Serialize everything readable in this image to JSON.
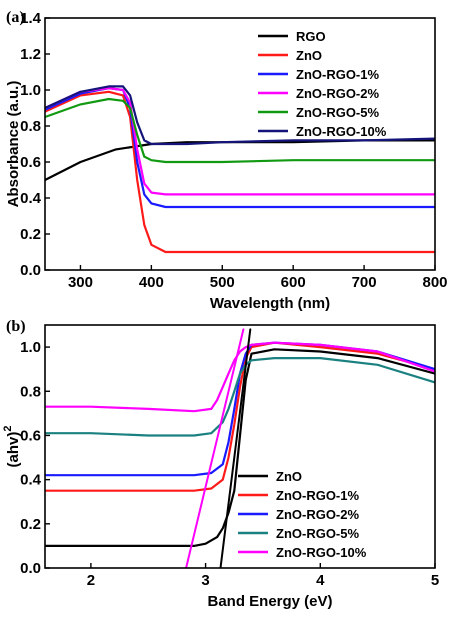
{
  "chart_data": [
    {
      "type": "line",
      "panel_label": "(a)",
      "xlabel": "Wavelength (nm)",
      "ylabel": "Absorbance (a.u.)",
      "xlim": [
        250,
        800
      ],
      "ylim": [
        0.0,
        1.4
      ],
      "xticks": [
        300,
        400,
        500,
        600,
        700,
        800
      ],
      "yticks": [
        0.0,
        0.2,
        0.4,
        0.6,
        0.8,
        1.0,
        1.2,
        1.4
      ],
      "ytick_labels": [
        "0.0",
        "0.2",
        "0.4",
        "0.6",
        "0.8",
        "1.0",
        "1.2",
        "1.4"
      ],
      "grid": false,
      "legend_position": "top-right",
      "series": [
        {
          "name": "RGO",
          "color": "#000000",
          "x": [
            250,
            300,
            350,
            400,
            450,
            500,
            600,
            700,
            800
          ],
          "y": [
            0.5,
            0.6,
            0.67,
            0.7,
            0.71,
            0.71,
            0.71,
            0.72,
            0.72
          ]
        },
        {
          "name": "ZnO",
          "color": "#ff1a1a",
          "x": [
            250,
            300,
            340,
            360,
            370,
            380,
            390,
            400,
            420,
            450,
            500,
            600,
            700,
            800
          ],
          "y": [
            0.88,
            0.97,
            0.99,
            0.97,
            0.85,
            0.5,
            0.25,
            0.14,
            0.1,
            0.1,
            0.1,
            0.1,
            0.1,
            0.1
          ]
        },
        {
          "name": "ZnO-RGO-1%",
          "color": "#1a1aff",
          "x": [
            250,
            300,
            340,
            360,
            370,
            380,
            390,
            400,
            420,
            450,
            500,
            600,
            700,
            800
          ],
          "y": [
            0.89,
            0.98,
            1.01,
            1.0,
            0.9,
            0.6,
            0.42,
            0.37,
            0.35,
            0.35,
            0.35,
            0.35,
            0.35,
            0.35
          ]
        },
        {
          "name": "ZnO-RGO-2%",
          "color": "#ff00ff",
          "x": [
            250,
            300,
            340,
            360,
            370,
            380,
            390,
            400,
            420,
            450,
            500,
            600,
            700,
            800
          ],
          "y": [
            0.9,
            0.99,
            1.01,
            1.0,
            0.93,
            0.67,
            0.48,
            0.43,
            0.42,
            0.42,
            0.42,
            0.42,
            0.42,
            0.42
          ]
        },
        {
          "name": "ZnO-RGO-5%",
          "color": "#119911",
          "x": [
            250,
            300,
            340,
            360,
            370,
            380,
            390,
            400,
            420,
            450,
            500,
            600,
            700,
            800
          ],
          "y": [
            0.85,
            0.92,
            0.95,
            0.94,
            0.9,
            0.75,
            0.63,
            0.61,
            0.6,
            0.6,
            0.6,
            0.61,
            0.61,
            0.61
          ]
        },
        {
          "name": "ZnO-RGO-10%",
          "color": "#14147a",
          "x": [
            250,
            300,
            340,
            360,
            370,
            380,
            390,
            400,
            420,
            450,
            500,
            600,
            700,
            800
          ],
          "y": [
            0.9,
            0.99,
            1.02,
            1.02,
            0.97,
            0.82,
            0.72,
            0.7,
            0.7,
            0.7,
            0.71,
            0.72,
            0.72,
            0.73
          ]
        }
      ]
    },
    {
      "type": "line",
      "panel_label": "(b)",
      "xlabel": "Band Energy  (eV)",
      "ylabel": "(ahv)",
      "ylabel_superscript": "2",
      "xlim": [
        1.6,
        5.0
      ],
      "ylim": [
        0.0,
        1.1
      ],
      "xticks": [
        2,
        3,
        4,
        5
      ],
      "yticks": [
        0.0,
        0.2,
        0.4,
        0.6,
        0.8,
        1.0
      ],
      "ytick_labels": [
        "0.0",
        "0.2",
        "0.4",
        "0.6",
        "0.8",
        "1.0"
      ],
      "grid": false,
      "legend_position": "bottom-right",
      "series": [
        {
          "name": "ZnO",
          "color": "#000000",
          "x": [
            1.6,
            2.0,
            2.5,
            2.9,
            3.0,
            3.1,
            3.15,
            3.2,
            3.25,
            3.3,
            3.35,
            3.4,
            3.6,
            4.0,
            4.5,
            5.0
          ],
          "y": [
            0.1,
            0.1,
            0.1,
            0.1,
            0.11,
            0.14,
            0.18,
            0.25,
            0.35,
            0.6,
            0.85,
            0.97,
            0.99,
            0.98,
            0.95,
            0.88
          ]
        },
        {
          "name": "ZnO-RGO-1%",
          "color": "#ff1a1a",
          "x": [
            1.6,
            2.0,
            2.5,
            2.9,
            3.05,
            3.15,
            3.2,
            3.25,
            3.3,
            3.35,
            3.4,
            3.6,
            4.0,
            4.5,
            5.0
          ],
          "y": [
            0.35,
            0.35,
            0.35,
            0.35,
            0.36,
            0.4,
            0.5,
            0.65,
            0.82,
            0.95,
            1.0,
            1.02,
            1.0,
            0.97,
            0.9
          ]
        },
        {
          "name": "ZnO-RGO-2%",
          "color": "#1a1aff",
          "x": [
            1.6,
            2.0,
            2.5,
            2.9,
            3.05,
            3.15,
            3.2,
            3.25,
            3.3,
            3.35,
            3.4,
            3.6,
            4.0,
            4.5,
            5.0
          ],
          "y": [
            0.42,
            0.42,
            0.42,
            0.42,
            0.43,
            0.47,
            0.57,
            0.72,
            0.88,
            0.97,
            1.01,
            1.02,
            1.01,
            0.98,
            0.9
          ]
        },
        {
          "name": "ZnO-RGO-5%",
          "color": "#1a8080",
          "x": [
            1.6,
            2.0,
            2.5,
            2.9,
            3.05,
            3.15,
            3.2,
            3.25,
            3.3,
            3.35,
            3.4,
            3.6,
            4.0,
            4.5,
            5.0
          ],
          "y": [
            0.61,
            0.61,
            0.6,
            0.6,
            0.61,
            0.66,
            0.72,
            0.8,
            0.88,
            0.92,
            0.94,
            0.95,
            0.95,
            0.92,
            0.84
          ]
        },
        {
          "name": "ZnO-RGO-10%",
          "color": "#ff00ff",
          "x": [
            1.6,
            2.0,
            2.5,
            2.9,
            3.05,
            3.1,
            3.15,
            3.2,
            3.25,
            3.3,
            3.35,
            3.4,
            3.6,
            4.0,
            4.5,
            5.0
          ],
          "y": [
            0.73,
            0.73,
            0.72,
            0.71,
            0.72,
            0.76,
            0.82,
            0.88,
            0.94,
            0.98,
            1.0,
            1.01,
            1.02,
            1.01,
            0.98,
            0.89
          ]
        },
        {
          "name": "",
          "color": "#ff00ff",
          "x": [
            2.83,
            3.33
          ],
          "y": [
            0.0,
            1.08
          ]
        },
        {
          "name": "",
          "color": "#000000",
          "x": [
            3.13,
            3.39
          ],
          "y": [
            0.0,
            1.08
          ]
        }
      ]
    }
  ]
}
